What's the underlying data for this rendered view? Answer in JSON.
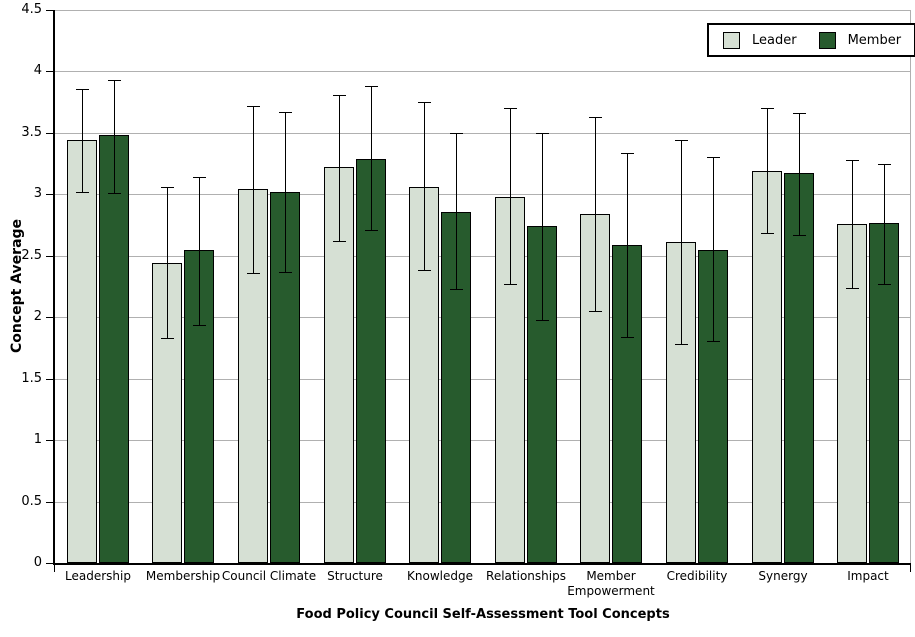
{
  "chart_data": {
    "type": "bar",
    "title": "",
    "xlabel": "Food Policy Council Self-Assessment Tool Concepts",
    "ylabel": "Concept Average",
    "ylim": [
      0,
      4.5
    ],
    "ytick_step": 0.5,
    "ytick_labels": [
      "0",
      "0.5",
      "1",
      "1.5",
      "2",
      "2.5",
      "3",
      "3.5",
      "4",
      "4.5"
    ],
    "grid": true,
    "legend_position": "top-right",
    "categories": [
      "Leadership",
      "Membership",
      "Council Climate",
      "Structure",
      "Knowledge",
      "Relationships",
      "Member Empowerment",
      "Credibility",
      "Synergy",
      "Impact"
    ],
    "series": [
      {
        "name": "Leader",
        "color": "#d6e0d4",
        "values": [
          3.44,
          2.44,
          3.04,
          3.22,
          3.06,
          2.98,
          2.84,
          2.61,
          3.19,
          2.76
        ],
        "error_low": [
          3.01,
          1.82,
          2.35,
          2.61,
          2.38,
          2.26,
          2.04,
          1.77,
          2.68,
          2.23
        ],
        "error_high": [
          3.86,
          3.06,
          3.72,
          3.81,
          3.75,
          3.7,
          3.63,
          3.44,
          3.7,
          3.28
        ]
      },
      {
        "name": "Member",
        "color": "#275b2d",
        "values": [
          3.48,
          2.55,
          3.02,
          3.29,
          2.86,
          2.74,
          2.59,
          2.55,
          3.17,
          2.77
        ],
        "error_low": [
          3.0,
          1.93,
          2.36,
          2.7,
          2.22,
          1.97,
          1.83,
          1.8,
          2.66,
          2.26
        ],
        "error_high": [
          3.93,
          3.14,
          3.67,
          3.88,
          3.5,
          3.5,
          3.34,
          3.3,
          3.66,
          3.25
        ]
      }
    ],
    "error_bar_color": "#000000",
    "gridline_color": "#b0b0b0",
    "background_color": "#ffffff"
  }
}
